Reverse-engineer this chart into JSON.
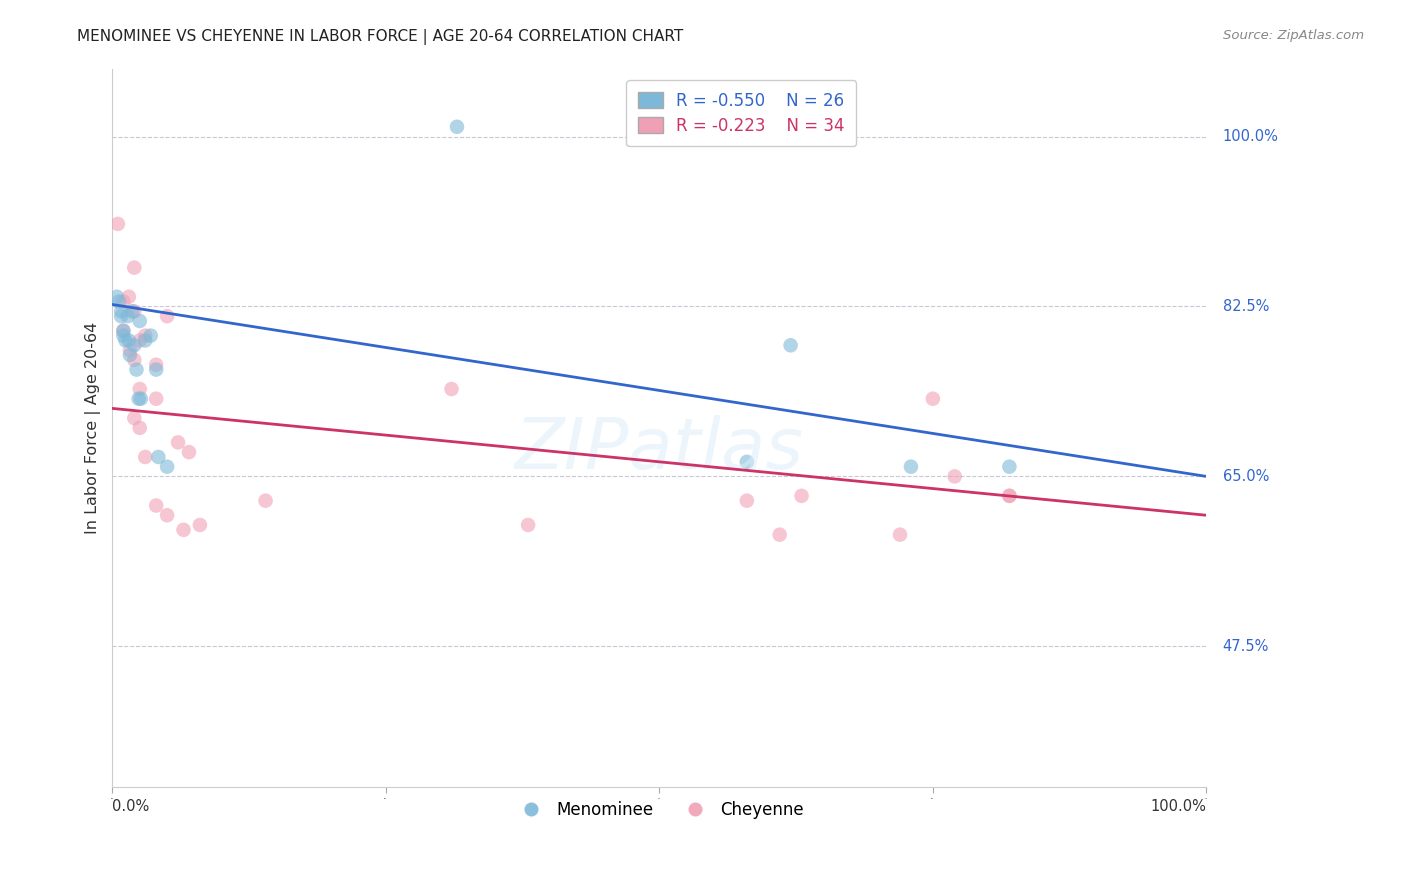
{
  "title": "MENOMINEE VS CHEYENNE IN LABOR FORCE | AGE 20-64 CORRELATION CHART",
  "source": "Source: ZipAtlas.com",
  "ylabel": "In Labor Force | Age 20-64",
  "y_tick_values": [
    1.0,
    0.825,
    0.65,
    0.475
  ],
  "y_tick_labels": [
    "100.0%",
    "82.5%",
    "65.0%",
    "47.5%"
  ],
  "xlim": [
    0.0,
    1.0
  ],
  "ylim": [
    0.33,
    1.07
  ],
  "legend_blue_r": "-0.550",
  "legend_blue_n": "26",
  "legend_pink_r": "-0.223",
  "legend_pink_n": "34",
  "blue_color": "#7eb8d8",
  "pink_color": "#f0a0b5",
  "line_blue_color": "#3366cc",
  "line_pink_color": "#cc3366",
  "background_color": "#ffffff",
  "grid_color": "#c8c8d8",
  "menominee_x": [
    0.004,
    0.006,
    0.008,
    0.008,
    0.01,
    0.01,
    0.012,
    0.014,
    0.015,
    0.016,
    0.018,
    0.02,
    0.022,
    0.024,
    0.025,
    0.026,
    0.03,
    0.035,
    0.04,
    0.042,
    0.05,
    0.58,
    0.62,
    0.73,
    0.82,
    0.315
  ],
  "menominee_y": [
    0.835,
    0.83,
    0.82,
    0.815,
    0.8,
    0.795,
    0.79,
    0.815,
    0.79,
    0.775,
    0.82,
    0.785,
    0.76,
    0.73,
    0.81,
    0.73,
    0.79,
    0.795,
    0.76,
    0.67,
    0.66,
    0.665,
    0.785,
    0.66,
    0.66,
    1.01
  ],
  "cheyenne_x": [
    0.005,
    0.01,
    0.01,
    0.015,
    0.016,
    0.02,
    0.02,
    0.02,
    0.02,
    0.025,
    0.025,
    0.025,
    0.03,
    0.03,
    0.04,
    0.04,
    0.04,
    0.05,
    0.05,
    0.06,
    0.065,
    0.31,
    0.38,
    0.58,
    0.61,
    0.63,
    0.72,
    0.75,
    0.77,
    0.82,
    0.82,
    0.07,
    0.08,
    0.14
  ],
  "cheyenne_y": [
    0.91,
    0.83,
    0.8,
    0.835,
    0.78,
    0.865,
    0.82,
    0.77,
    0.71,
    0.79,
    0.74,
    0.7,
    0.795,
    0.67,
    0.765,
    0.73,
    0.62,
    0.815,
    0.61,
    0.685,
    0.595,
    0.74,
    0.6,
    0.625,
    0.59,
    0.63,
    0.59,
    0.73,
    0.65,
    0.63,
    0.63,
    0.675,
    0.6,
    0.625
  ],
  "marker_size": 110,
  "alpha": 0.6,
  "blue_line_start_y": 0.827,
  "blue_line_end_y": 0.65,
  "pink_line_start_y": 0.72,
  "pink_line_end_y": 0.61
}
